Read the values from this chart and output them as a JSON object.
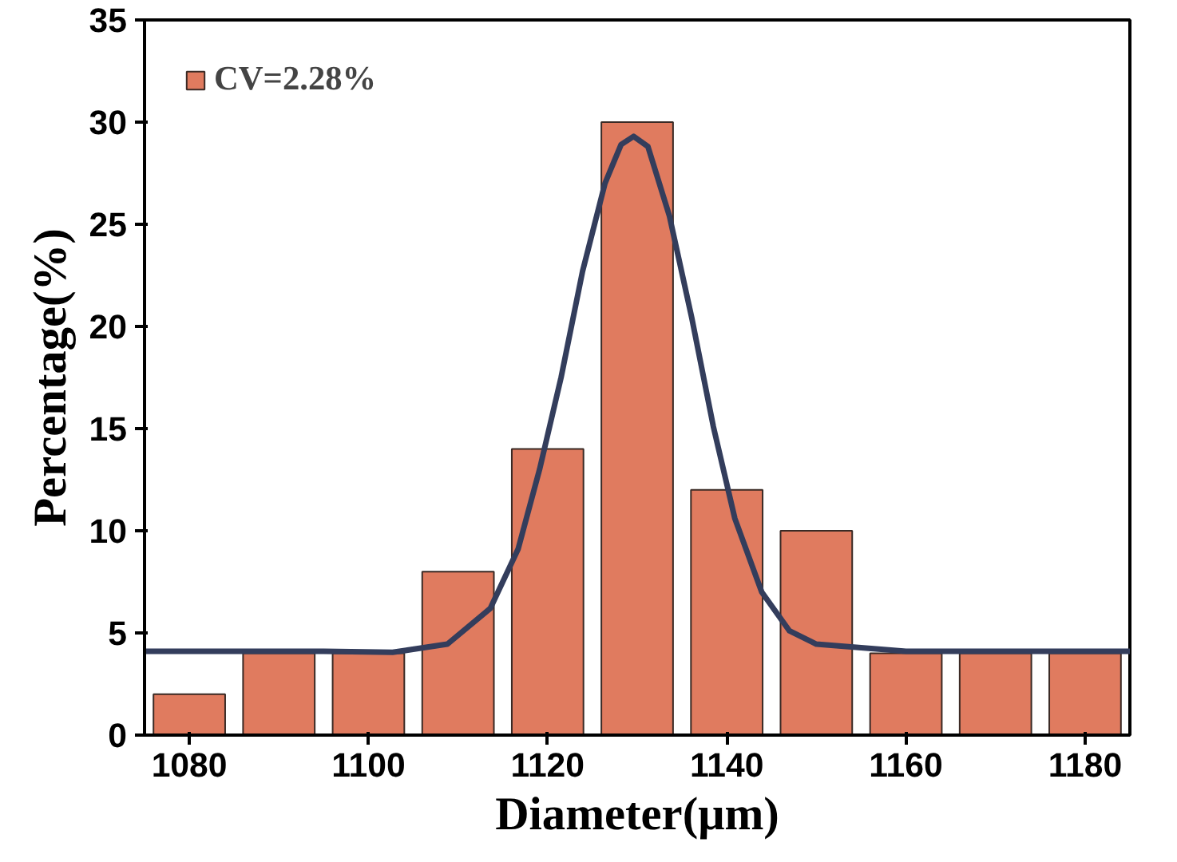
{
  "chart_data": {
    "type": "bar",
    "xlabel": "Diameter(μm)",
    "ylabel": "Percentage(%)",
    "x": [
      1080,
      1090,
      1100,
      1110,
      1120,
      1130,
      1140,
      1150,
      1160,
      1170,
      1180
    ],
    "series": [
      {
        "name": "CV=2.28%",
        "color": "#e07b5f",
        "values": [
          2,
          4,
          4,
          8,
          14,
          30,
          12,
          10,
          4,
          4,
          4
        ]
      },
      {
        "type": "line",
        "color": "#333d5c",
        "x": [
          1075,
          1095,
          1102.7,
          1108.8,
          1113.6,
          1116.7,
          1119.1,
          1121.5,
          1123.9,
          1126.4,
          1128.2,
          1129.6,
          1131.2,
          1133.6,
          1136.1,
          1138.5,
          1140.9,
          1143.9,
          1147.0,
          1150,
          1160,
          1185
        ],
        "values": [
          4.1,
          4.1,
          4.05,
          4.45,
          6.2,
          9.1,
          13.0,
          17.5,
          22.7,
          27.0,
          28.9,
          29.3,
          28.8,
          25.4,
          20.4,
          15.1,
          10.6,
          7.0,
          5.1,
          4.45,
          4.1,
          4.1
        ]
      }
    ],
    "xlim": [
      1075,
      1185
    ],
    "xticks": [
      1080,
      1100,
      1120,
      1140,
      1160,
      1180
    ],
    "ylim": [
      0,
      35
    ],
    "yticks": [
      0,
      5,
      10,
      15,
      20,
      25,
      30,
      35
    ],
    "grid": false,
    "legend": "top left"
  }
}
